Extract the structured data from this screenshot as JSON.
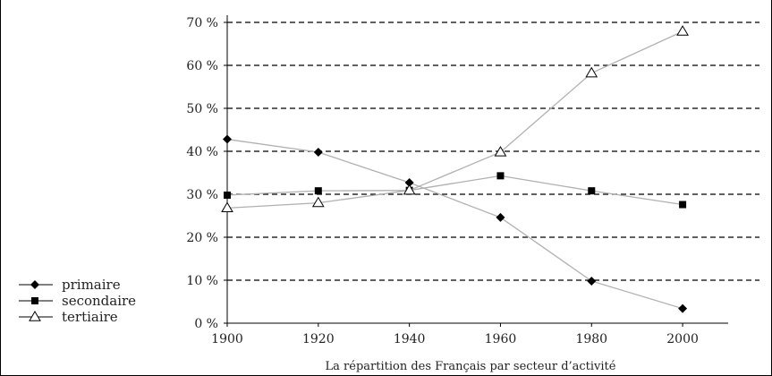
{
  "chart_data": {
    "type": "line",
    "title": "",
    "caption": "La répartition des Français par secteur d’activité",
    "xlabel": "",
    "ylabel": "",
    "x": [
      1900,
      1920,
      1940,
      1960,
      1980,
      2000
    ],
    "xlim": [
      1900,
      2010
    ],
    "ylim": [
      0,
      70
    ],
    "y_ticks": [
      0,
      10,
      20,
      30,
      40,
      50,
      60,
      70
    ],
    "y_tick_labels": [
      "0 %",
      "10 %",
      "20 %",
      "30 %",
      "40 %",
      "50 %",
      "60 %",
      "70 %"
    ],
    "x_tick_labels": [
      "1900",
      "1920",
      "1940",
      "1960",
      "1980",
      "2000"
    ],
    "grid": "horizontal dashed",
    "legend_position": "bottom-left",
    "series": [
      {
        "name": "primaire",
        "marker": "diamond",
        "color": "#000000",
        "values": [
          42.8,
          39.8,
          32.7,
          24.6,
          9.8,
          3.4
        ]
      },
      {
        "name": "secondaire",
        "marker": "square",
        "color": "#000000",
        "values": [
          29.8,
          30.8,
          30.9,
          34.3,
          30.8,
          27.6
        ]
      },
      {
        "name": "tertiaire",
        "marker": "open-triangle",
        "color": "#000000",
        "values": [
          26.8,
          28.0,
          30.9,
          39.8,
          58.2,
          67.9
        ]
      }
    ],
    "line_color": "#b0b0b0"
  }
}
